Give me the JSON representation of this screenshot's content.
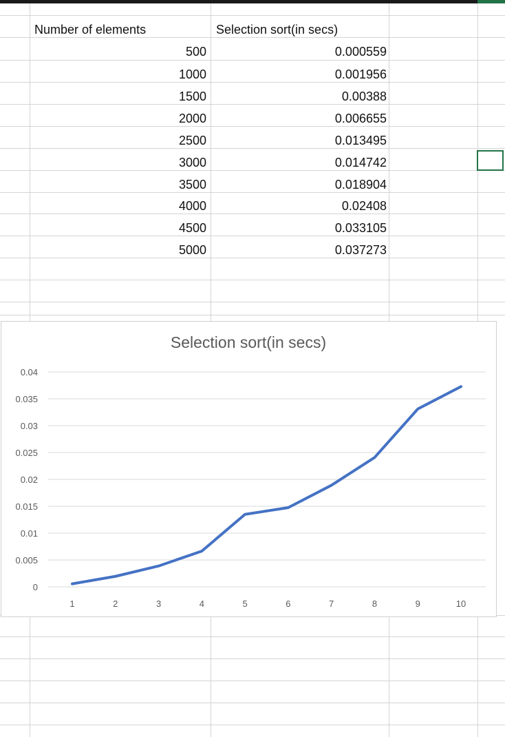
{
  "table": {
    "headers": [
      "Number of elements",
      "Selection sort(in secs)"
    ],
    "rows": [
      [
        "500",
        "0.000559"
      ],
      [
        "1000",
        "0.001956"
      ],
      [
        "1500",
        "0.00388"
      ],
      [
        "2000",
        "0.006655"
      ],
      [
        "2500",
        "0.013495"
      ],
      [
        "3000",
        "0.014742"
      ],
      [
        "3500",
        "0.018904"
      ],
      [
        "4000",
        "0.02408"
      ],
      [
        "4500",
        "0.033105"
      ],
      [
        "5000",
        "0.037273"
      ]
    ]
  },
  "chart_data": {
    "type": "line",
    "title": "Selection sort(in secs)",
    "xlabel": "",
    "ylabel": "",
    "categories": [
      "1",
      "2",
      "3",
      "4",
      "5",
      "6",
      "7",
      "8",
      "9",
      "10"
    ],
    "series": [
      {
        "values": [
          0.000559,
          0.001956,
          0.00388,
          0.006655,
          0.013495,
          0.014742,
          0.018904,
          0.02408,
          0.033105,
          0.037273
        ]
      }
    ],
    "ylim": [
      0,
      0.04
    ],
    "y_ticks": [
      "0",
      "0.005",
      "0.01",
      "0.015",
      "0.02",
      "0.025",
      "0.03",
      "0.035",
      "0.04"
    ],
    "grid": true,
    "legend": "none",
    "line_color": "#4472C4"
  }
}
